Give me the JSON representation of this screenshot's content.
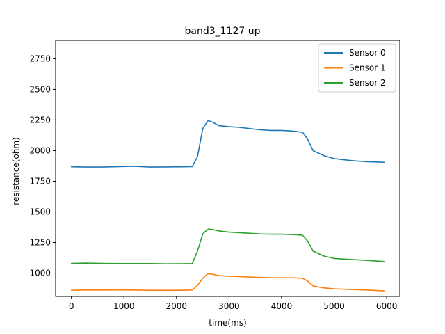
{
  "chart_data": {
    "type": "line",
    "title": "band3_1127 up",
    "xlabel": "time(ms)",
    "ylabel": "resistance(ohm)",
    "xlim": [
      -300,
      6250
    ],
    "ylim": [
      810,
      2900
    ],
    "xticks": [
      0,
      1000,
      2000,
      3000,
      4000,
      5000,
      6000
    ],
    "yticks": [
      1000,
      1250,
      1500,
      1750,
      2000,
      2250,
      2500,
      2750
    ],
    "legend": "top-right",
    "grid": false,
    "series": [
      {
        "name": "Sensor 0",
        "color": "#1f77b4",
        "x": [
          0,
          300,
          600,
          900,
          1200,
          1500,
          1800,
          2100,
          2300,
          2400,
          2500,
          2600,
          2700,
          2800,
          3000,
          3200,
          3400,
          3600,
          3800,
          4000,
          4200,
          4400,
          4500,
          4600,
          4800,
          5000,
          5300,
          5600,
          5950
        ],
        "values": [
          1868,
          1866,
          1866,
          1870,
          1872,
          1866,
          1867,
          1868,
          1870,
          1950,
          2180,
          2245,
          2230,
          2205,
          2195,
          2190,
          2180,
          2170,
          2165,
          2165,
          2160,
          2150,
          2090,
          2000,
          1960,
          1935,
          1920,
          1910,
          1905
        ]
      },
      {
        "name": "Sensor 1",
        "color": "#ff7f0e",
        "x": [
          0,
          300,
          600,
          900,
          1200,
          1500,
          1800,
          2100,
          2300,
          2400,
          2500,
          2600,
          2700,
          2800,
          3000,
          3200,
          3400,
          3600,
          3800,
          4000,
          4200,
          4400,
          4500,
          4600,
          4800,
          5000,
          5300,
          5600,
          5950
        ],
        "values": [
          860,
          862,
          862,
          863,
          862,
          860,
          860,
          860,
          862,
          900,
          960,
          995,
          990,
          980,
          975,
          972,
          968,
          965,
          962,
          962,
          962,
          958,
          935,
          895,
          880,
          872,
          866,
          862,
          855
        ]
      },
      {
        "name": "Sensor 2",
        "color": "#2ca02c",
        "x": [
          0,
          300,
          600,
          900,
          1200,
          1500,
          1800,
          2100,
          2300,
          2400,
          2500,
          2600,
          2700,
          2800,
          3000,
          3200,
          3400,
          3600,
          3800,
          4000,
          4200,
          4400,
          4500,
          4600,
          4800,
          5000,
          5300,
          5600,
          5950
        ],
        "values": [
          1080,
          1082,
          1080,
          1078,
          1078,
          1078,
          1076,
          1077,
          1078,
          1180,
          1320,
          1360,
          1355,
          1345,
          1335,
          1330,
          1325,
          1320,
          1318,
          1318,
          1315,
          1310,
          1260,
          1180,
          1140,
          1120,
          1112,
          1105,
          1095
        ]
      }
    ]
  }
}
